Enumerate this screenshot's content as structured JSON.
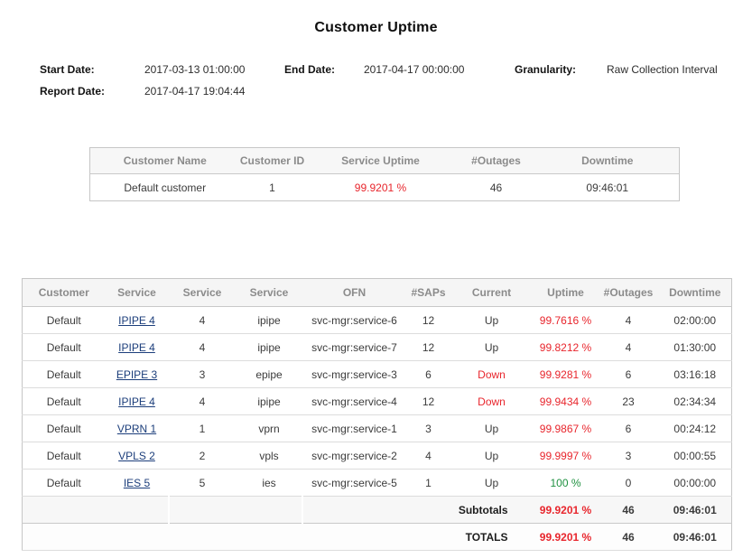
{
  "title": "Customer Uptime",
  "meta": {
    "start_date_label": "Start Date:",
    "start_date": "2017-03-13 01:00:00",
    "end_date_label": "End Date:",
    "end_date": "2017-04-17 00:00:00",
    "granularity_label": "Granularity:",
    "granularity": "Raw Collection Interval",
    "report_date_label": "Report Date:",
    "report_date": "2017-04-17 19:04:44"
  },
  "colors": {
    "alert_red": "#e8262d",
    "ok_green": "#1f9140",
    "link_blue": "#1c3e7b",
    "header_gray": "#8b8b8b"
  },
  "summary_table": {
    "headers": [
      "Customer Name",
      "Customer ID",
      "Service Uptime",
      "#Outages",
      "Downtime"
    ],
    "row": {
      "customer_name": "Default customer",
      "customer_id": "1",
      "service_uptime": "99.9201 %",
      "outages": "46",
      "downtime": "09:46:01"
    }
  },
  "detail_table": {
    "headers": [
      "Customer",
      "Service",
      "Service",
      "Service",
      "OFN",
      "#SAPs",
      "Current",
      "Uptime",
      "#Outages",
      "Downtime"
    ],
    "rows": [
      {
        "cells": [
          "Default",
          "IPIPE 4",
          "4",
          "ipipe",
          "svc-mgr:service-6",
          "12",
          "Up",
          "99.7616 %",
          "4",
          "02:00:00"
        ],
        "uptime_color": "red"
      },
      {
        "cells": [
          "Default",
          "IPIPE 4",
          "4",
          "ipipe",
          "svc-mgr:service-7",
          "12",
          "Up",
          "99.8212 %",
          "4",
          "01:30:00"
        ],
        "uptime_color": "red"
      },
      {
        "cells": [
          "Default",
          "EPIPE 3",
          "3",
          "epipe",
          "svc-mgr:service-3",
          "6",
          "Down",
          "99.9281 %",
          "6",
          "03:16:18"
        ],
        "uptime_color": "red"
      },
      {
        "cells": [
          "Default",
          "IPIPE 4",
          "4",
          "ipipe",
          "svc-mgr:service-4",
          "12",
          "Down",
          "99.9434 %",
          "23",
          "02:34:34"
        ],
        "uptime_color": "red"
      },
      {
        "cells": [
          "Default",
          "VPRN 1",
          "1",
          "vprn",
          "svc-mgr:service-1",
          "3",
          "Up",
          "99.9867 %",
          "6",
          "00:24:12"
        ],
        "uptime_color": "red"
      },
      {
        "cells": [
          "Default",
          "VPLS 2",
          "2",
          "vpls",
          "svc-mgr:service-2",
          "4",
          "Up",
          "99.9997 %",
          "3",
          "00:00:55"
        ],
        "uptime_color": "red"
      },
      {
        "cells": [
          "Default",
          "IES 5",
          "5",
          "ies",
          "svc-mgr:service-5",
          "1",
          "Up",
          "100 %",
          "0",
          "00:00:00"
        ],
        "uptime_color": "green"
      }
    ],
    "subtotals": {
      "label": "Subtotals",
      "uptime": "99.9201 %",
      "outages": "46",
      "downtime": "09:46:01"
    },
    "totals": {
      "label": "TOTALS",
      "uptime": "99.9201 %",
      "outages": "46",
      "downtime": "09:46:01"
    }
  }
}
